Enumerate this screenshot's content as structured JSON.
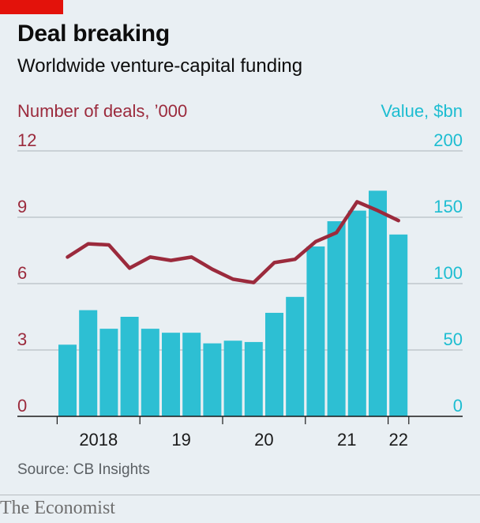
{
  "header": {
    "title": "Deal breaking",
    "subtitle": "Worldwide venture-capital funding"
  },
  "footer": {
    "source": "Source: CB Insights",
    "brand": "The Economist"
  },
  "colors": {
    "deals_line": "#9b2a3c",
    "value_bars": "#2dbfd3",
    "background": "#e9eff3",
    "accent": "#e3120b"
  },
  "chart_data": {
    "type": "bar",
    "ylabel_left": "Number of deals, ’000",
    "ylabel_right": "Value, $bn",
    "left_ticks": [
      "0",
      "3",
      "6",
      "9",
      "12"
    ],
    "right_ticks": [
      "0",
      "50",
      "100",
      "150",
      "200"
    ],
    "ylim_left": [
      0,
      12
    ],
    "ylim_right": [
      0,
      200
    ],
    "x_tick_labels": [
      "2018",
      "19",
      "20",
      "21",
      "22"
    ],
    "categories": [
      "2018 Q1",
      "2018 Q2",
      "2018 Q3",
      "2018 Q4",
      "2019 Q1",
      "2019 Q2",
      "2019 Q3",
      "2019 Q4",
      "2020 Q1",
      "2020 Q2",
      "2020 Q3",
      "2020 Q4",
      "2021 Q1",
      "2021 Q2",
      "2021 Q3",
      "2021 Q4",
      "2022 Q1"
    ],
    "series": [
      {
        "name": "Value, $bn",
        "axis": "right",
        "kind": "bar",
        "values": [
          54,
          80,
          66,
          75,
          66,
          63,
          63,
          55,
          57,
          56,
          78,
          90,
          128,
          147,
          155,
          170,
          137
        ]
      },
      {
        "name": "Number of deals, ’000",
        "axis": "left",
        "kind": "line",
        "values": [
          7.2,
          7.8,
          7.75,
          6.7,
          7.2,
          7.05,
          7.2,
          6.65,
          6.2,
          6.05,
          6.95,
          7.1,
          7.9,
          8.3,
          9.7,
          9.3,
          8.85
        ]
      }
    ],
    "grid": true,
    "legend": "none"
  }
}
